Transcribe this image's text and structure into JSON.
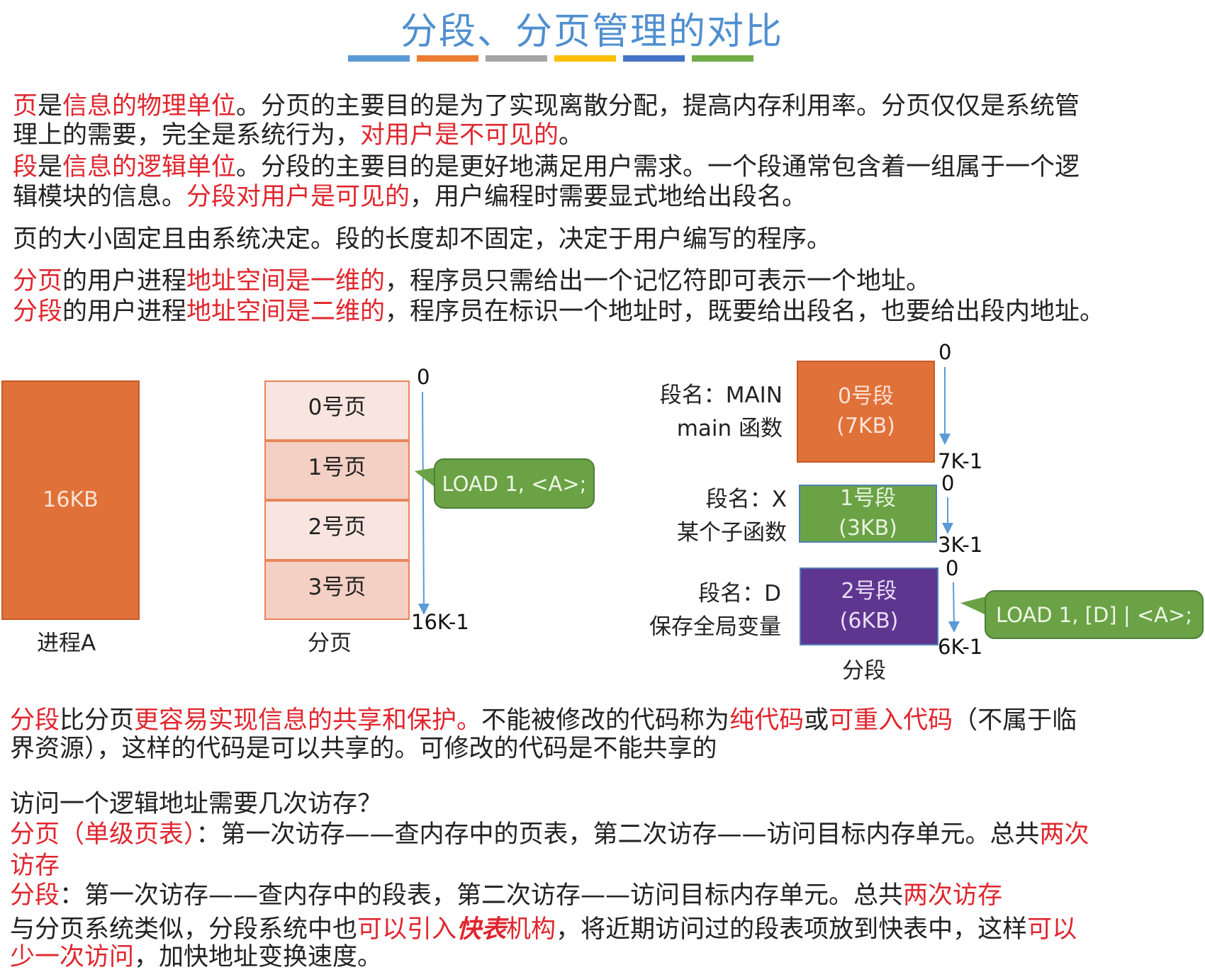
{
  "title": "分段、分页管理的对比",
  "title_bar_colors": [
    "#5b9bd5",
    "#ed7d31",
    "#a5a5a5",
    "#ffc000",
    "#4472c4",
    "#70ad47"
  ],
  "colors": {
    "highlight": "#e0262e",
    "process": "#e07139",
    "page_fill_light": "#f9e5e0",
    "page_fill_dark": "#f4cfc4",
    "segment0": "#e07139",
    "segment1": "#6aa245",
    "segment2": "#5e3690",
    "callout": "#6aa245",
    "arrow": "#5b9bd5"
  },
  "text_top": [
    [
      {
        "t": "页",
        "c": "r"
      },
      {
        "t": "是"
      },
      {
        "t": "信息的物理单位",
        "c": "r"
      },
      {
        "t": "。分页的主要目的是为了实现离散分配，提高内存利用率。分页仅仅是系统管"
      }
    ],
    [
      {
        "t": "理上的需要，完全是系统行为，"
      },
      {
        "t": "对用户是不可见的",
        "c": "r"
      },
      {
        "t": "。"
      }
    ],
    [
      {
        "t": "段",
        "c": "r"
      },
      {
        "t": "是"
      },
      {
        "t": "信息的逻辑单位",
        "c": "r"
      },
      {
        "t": "。分段的主要目的是更好地满足用户需求。一个段通常包含着一组属于一个逻"
      }
    ],
    [
      {
        "t": "辑模块的信息。"
      },
      {
        "t": "分段对用户是可见的",
        "c": "r"
      },
      {
        "t": "，用户编程时需要显式地给出段名。"
      }
    ],
    [
      {
        "t": "页的大小固定且由系统决定。段的长度却不固定，决定于用户编写的程序。"
      }
    ],
    [
      {
        "t": "分页",
        "c": "r"
      },
      {
        "t": "的用户进程"
      },
      {
        "t": "地址空间是一维的",
        "c": "r"
      },
      {
        "t": "，程序员只需给出一个记忆符即可表示一个地址。"
      }
    ],
    [
      {
        "t": "分段",
        "c": "r"
      },
      {
        "t": "的用户进程"
      },
      {
        "t": "地址空间是二维的",
        "c": "r"
      },
      {
        "t": "，程序员在标识一个地址时，既要给出段名，也要给出段内地址。"
      }
    ]
  ],
  "text_bottom": [
    [
      {
        "t": "分段",
        "c": "r"
      },
      {
        "t": "比分页"
      },
      {
        "t": "更容易实现信息的共享和保护。",
        "c": "r"
      },
      {
        "t": "不能被修改的代码称为"
      },
      {
        "t": "纯代码",
        "c": "r"
      },
      {
        "t": "或"
      },
      {
        "t": "可重入代码",
        "c": "r"
      },
      {
        "t": "（不属于临"
      }
    ],
    [
      {
        "t": "界资源），这样的代码是可以共享的。可修改的代码是不能共享的"
      }
    ],
    [
      {
        "t": "访问一个逻辑地址需要几次访存？"
      }
    ],
    [
      {
        "t": "分页（单级页表）",
        "c": "r"
      },
      {
        "t": "：第一次访存——查内存中的页表，第二次访存——访问目标内存单元。总共"
      },
      {
        "t": "两次",
        "c": "r"
      }
    ],
    [
      {
        "t": "访存",
        "c": "r"
      }
    ],
    [
      {
        "t": "分段",
        "c": "r"
      },
      {
        "t": "：第一次访存——查内存中的段表，第二次访存——访问目标内存单元。总共"
      },
      {
        "t": "两次访存",
        "c": "r"
      }
    ],
    [
      {
        "t": "与分页系统类似，分段系统中也"
      },
      {
        "t": "可以引入",
        "c": "r"
      },
      {
        "t": "快表",
        "c": "rb"
      },
      {
        "t": "机构",
        "c": "r"
      },
      {
        "t": "，将近期访问过的段表项放到快表中，这样"
      },
      {
        "t": "可以",
        "c": "r"
      }
    ],
    [
      {
        "t": "少一次访问",
        "c": "r"
      },
      {
        "t": "，加快地址变换速度。"
      }
    ]
  ],
  "process": {
    "size": "16KB",
    "label": "进程A"
  },
  "paging": {
    "pages": [
      "0号页",
      "1号页",
      "2号页",
      "3号页"
    ],
    "label": "分页",
    "start": "0",
    "end": "16K-1",
    "callout": "LOAD 1, <A>;"
  },
  "segmentation": {
    "label": "分段",
    "segments": [
      {
        "name": "段名：MAIN",
        "desc": "main 函数",
        "title": "0号段",
        "size": "(7KB)",
        "start": "0",
        "end": "7K-1"
      },
      {
        "name": "段名：X",
        "desc": "某个子函数",
        "title": "1号段",
        "size": "(3KB)",
        "start": "0",
        "end": "3K-1"
      },
      {
        "name": "段名：D",
        "desc": "保存全局变量",
        "title": "2号段",
        "size": "(6KB)",
        "start": "0",
        "end": "6K-1"
      }
    ],
    "callout": "LOAD 1, [D] | <A>;"
  }
}
